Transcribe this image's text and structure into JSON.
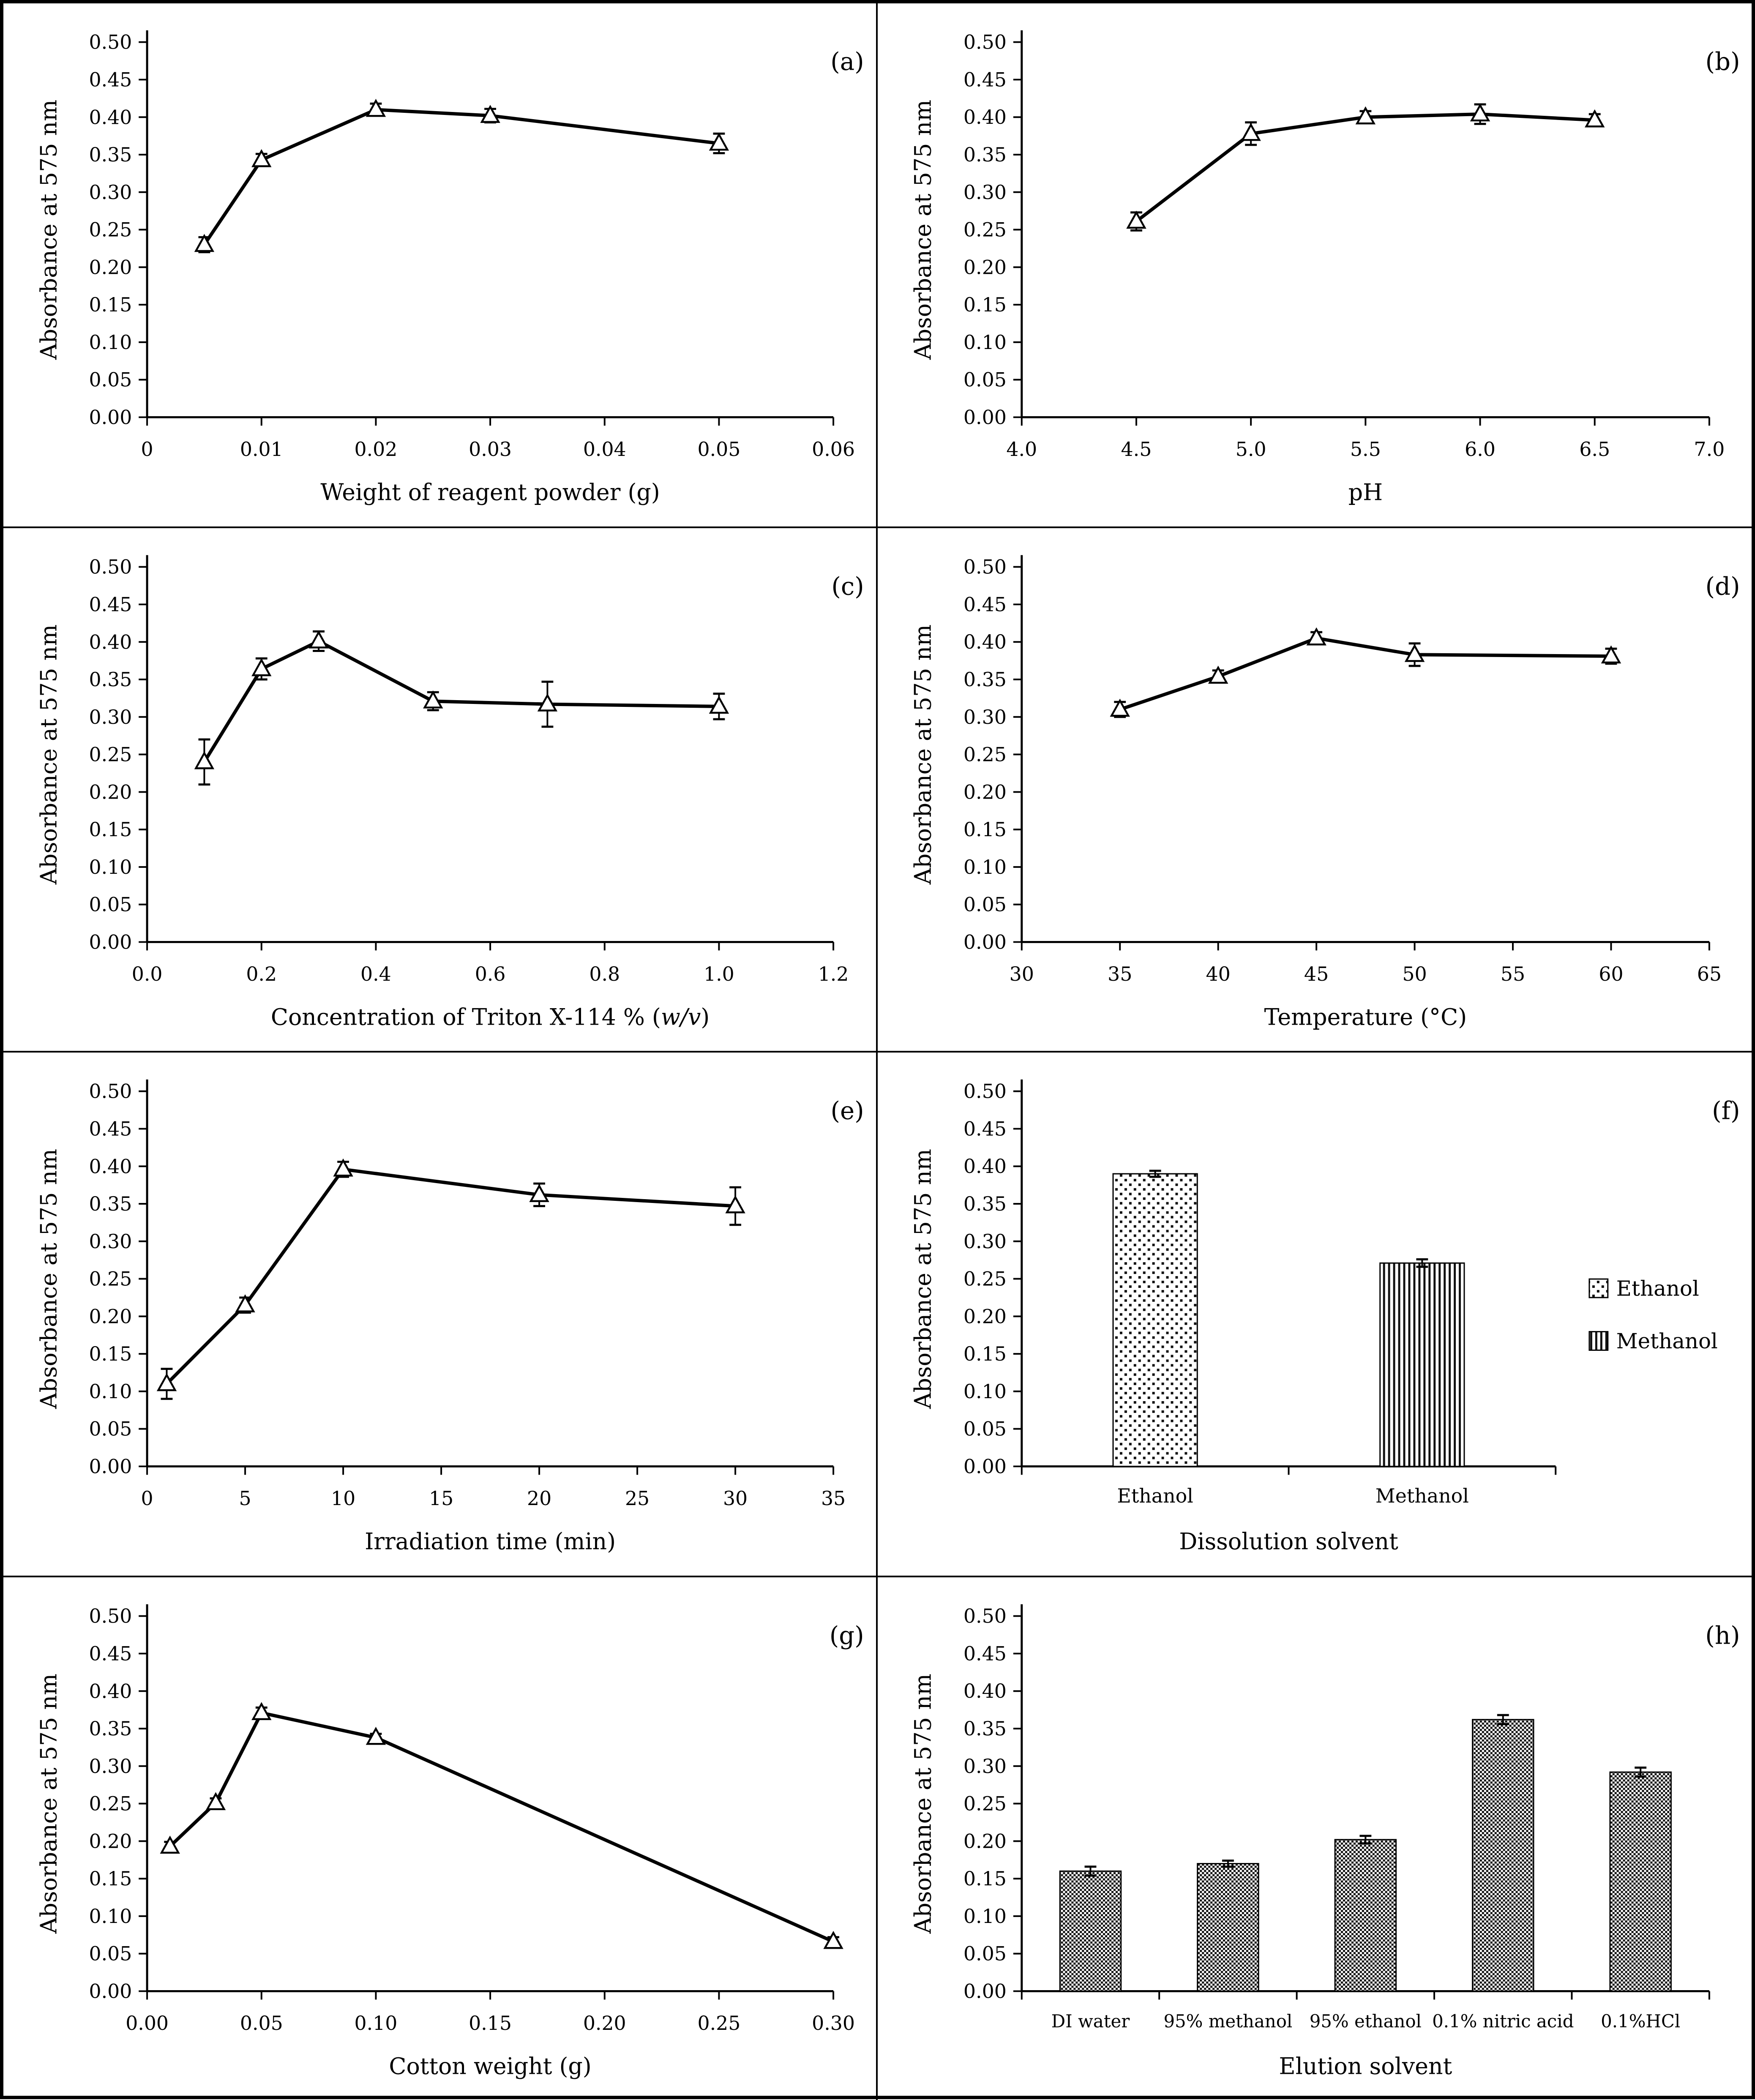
{
  "axes": {
    "ylabel": "Absorbance at 575 nm",
    "ylim": [
      0,
      0.5
    ],
    "ytick_step": 0.05,
    "ytick_decimals": 2
  },
  "chart_data": [
    {
      "id": "a",
      "panel_label": "(a)",
      "type": "line",
      "xlabel": "Weight of reagent powder (g)",
      "ylabel": "Absorbance at 575 nm",
      "xlim": [
        0,
        0.06
      ],
      "xticks": [
        0,
        0.01,
        0.02,
        0.03,
        0.04,
        0.05,
        0.06
      ],
      "xtick_labels": [
        "0",
        "0.01",
        "0.02",
        "0.03",
        "0.04",
        "0.05",
        "0.06"
      ],
      "ylim": [
        0,
        0.5
      ],
      "x": [
        0.005,
        0.01,
        0.02,
        0.03,
        0.05
      ],
      "y": [
        0.23,
        0.343,
        0.41,
        0.402,
        0.365
      ],
      "yerr": [
        0.01,
        0.008,
        0.008,
        0.009,
        0.013
      ],
      "marker": "open-triangle"
    },
    {
      "id": "b",
      "panel_label": "(b)",
      "type": "line",
      "xlabel": "pH",
      "ylabel": "Absorbance at 575 nm",
      "xlim": [
        4.0,
        7.0
      ],
      "xticks": [
        4.0,
        4.5,
        5.0,
        5.5,
        6.0,
        6.5,
        7.0
      ],
      "xtick_labels": [
        "4.0",
        "4.5",
        "5.0",
        "5.5",
        "6.0",
        "6.5",
        "7.0"
      ],
      "ylim": [
        0,
        0.5
      ],
      "x": [
        4.5,
        5.0,
        5.5,
        6.0,
        6.5
      ],
      "y": [
        0.261,
        0.378,
        0.4,
        0.404,
        0.396
      ],
      "yerr": [
        0.012,
        0.015,
        0.008,
        0.013,
        0.008
      ],
      "marker": "open-triangle"
    },
    {
      "id": "c",
      "panel_label": "(c)",
      "type": "line",
      "xlabel": "Concentration of Triton X-114 % (w/v)",
      "xlabel_parts": [
        {
          "text": "Concentration of Triton X-114 % ("
        },
        {
          "text": "w/v",
          "italic": true
        },
        {
          "text": ")"
        }
      ],
      "ylabel": "Absorbance at 575 nm",
      "xlim": [
        0.0,
        1.2
      ],
      "xticks": [
        0.0,
        0.2,
        0.4,
        0.6,
        0.8,
        1.0,
        1.2
      ],
      "xtick_labels": [
        "0.0",
        "0.2",
        "0.4",
        "0.6",
        "0.8",
        "1.0",
        "1.2"
      ],
      "ylim": [
        0,
        0.5
      ],
      "x": [
        0.1,
        0.2,
        0.3,
        0.5,
        0.7,
        1.0
      ],
      "y": [
        0.24,
        0.364,
        0.401,
        0.321,
        0.317,
        0.314
      ],
      "yerr": [
        0.03,
        0.014,
        0.013,
        0.012,
        0.03,
        0.017
      ],
      "marker": "open-triangle"
    },
    {
      "id": "d",
      "panel_label": "(d)",
      "type": "line",
      "xlabel": "Temperature (°C)",
      "ylabel": "Absorbance at 575 nm",
      "xlim": [
        30,
        65
      ],
      "xticks": [
        30,
        35,
        40,
        45,
        50,
        55,
        60,
        65
      ],
      "xtick_labels": [
        "30",
        "35",
        "40",
        "45",
        "50",
        "55",
        "60",
        "65"
      ],
      "ylim": [
        0,
        0.5
      ],
      "x": [
        35,
        40,
        45,
        50,
        60
      ],
      "y": [
        0.31,
        0.354,
        0.405,
        0.383,
        0.381
      ],
      "yerr": [
        0.01,
        0.008,
        0.008,
        0.015,
        0.01
      ],
      "marker": "open-triangle"
    },
    {
      "id": "e",
      "panel_label": "(e)",
      "type": "line",
      "xlabel": "Irradiation time (min)",
      "ylabel": "Absorbance at 575 nm",
      "xlim": [
        0,
        35
      ],
      "xticks": [
        0,
        5,
        10,
        15,
        20,
        25,
        30,
        35
      ],
      "xtick_labels": [
        "0",
        "5",
        "10",
        "15",
        "20",
        "25",
        "30",
        "35"
      ],
      "ylim": [
        0,
        0.5
      ],
      "x": [
        1,
        5,
        10,
        20,
        30
      ],
      "y": [
        0.11,
        0.215,
        0.396,
        0.362,
        0.347
      ],
      "yerr": [
        0.02,
        0.01,
        0.01,
        0.015,
        0.025
      ],
      "marker": "open-triangle"
    },
    {
      "id": "f",
      "panel_label": "(f)",
      "type": "bar",
      "xlabel": "Dissolution solvent",
      "ylabel": "Absorbance at 575 nm",
      "ylim": [
        0,
        0.5
      ],
      "categories": [
        "Ethanol",
        "Methanol"
      ],
      "values": [
        0.39,
        0.271
      ],
      "yerr": [
        0.004,
        0.005
      ],
      "patterns": [
        "dots",
        "vstripes"
      ],
      "legend": [
        {
          "label": "Ethanol",
          "pattern": "dots"
        },
        {
          "label": "Methanol",
          "pattern": "vstripes"
        }
      ],
      "legend_position": "right"
    },
    {
      "id": "g",
      "panel_label": "(g)",
      "type": "line",
      "xlabel": "Cotton weight (g)",
      "ylabel": "Absorbance at 575 nm",
      "xlim": [
        0.0,
        0.3
      ],
      "xticks": [
        0.0,
        0.05,
        0.1,
        0.15,
        0.2,
        0.25,
        0.3
      ],
      "xtick_labels": [
        "0.00",
        "0.05",
        "0.10",
        "0.15",
        "0.20",
        "0.25",
        "0.30"
      ],
      "ylim": [
        0,
        0.5
      ],
      "x": [
        0.01,
        0.03,
        0.05,
        0.1,
        0.3
      ],
      "y": [
        0.193,
        0.251,
        0.371,
        0.338,
        0.066
      ],
      "yerr": [
        0.006,
        0.006,
        0.007,
        0.005,
        0.006
      ],
      "marker": "open-triangle"
    },
    {
      "id": "h",
      "panel_label": "(h)",
      "type": "bar",
      "xlabel": "Elution solvent",
      "ylabel": "Absorbance at 575 nm",
      "ylim": [
        0,
        0.5
      ],
      "categories": [
        "DI water",
        "95% methanol",
        "95% ethanol",
        "0.1% nitric acid",
        "0.1%HCl"
      ],
      "values": [
        0.16,
        0.17,
        0.202,
        0.362,
        0.292
      ],
      "yerr": [
        0.006,
        0.004,
        0.005,
        0.006,
        0.006
      ],
      "patterns": [
        "checker",
        "checker",
        "checker",
        "checker",
        "checker"
      ]
    }
  ]
}
